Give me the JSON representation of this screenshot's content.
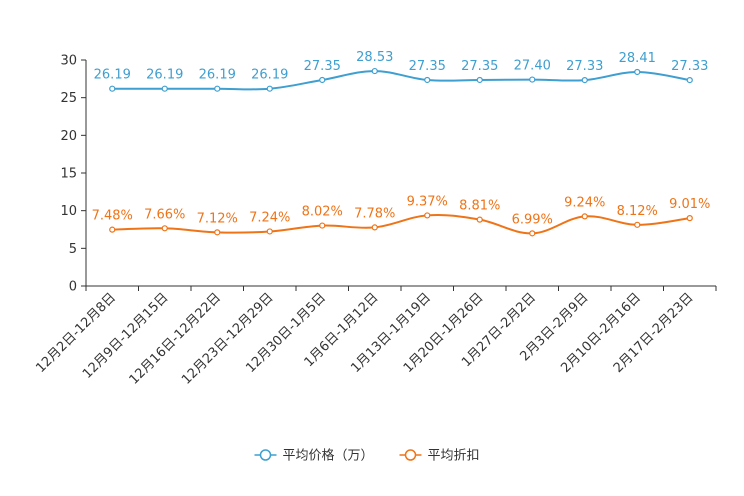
{
  "chart_data": {
    "type": "line",
    "categories": [
      "12月2日-12月8日",
      "12月9日-12月15日",
      "12月16日-12月22日",
      "12月23日-12月29日",
      "12月30日-1月5日",
      "1月6日-1月12日",
      "1月13日-1月19日",
      "1月20日-1月26日",
      "1月27日-2月2日",
      "2月3日-2月9日",
      "2月10日-2月16日",
      "2月17日-2月23日"
    ],
    "ylim": [
      0,
      30
    ],
    "yticks": [
      0,
      5,
      10,
      15,
      20,
      25,
      30
    ],
    "series": [
      {
        "name": "平均价格（万）",
        "color": "#3f9fd0",
        "values": [
          26.19,
          26.19,
          26.19,
          26.19,
          27.35,
          28.53,
          27.35,
          27.35,
          27.4,
          27.33,
          28.41,
          27.33
        ],
        "labels": [
          "26.19",
          "26.19",
          "26.19",
          "26.19",
          "27.35",
          "28.53",
          "27.35",
          "27.35",
          "27.40",
          "27.33",
          "28.41",
          "27.33"
        ]
      },
      {
        "name": "平均折扣",
        "color": "#ef7418",
        "values": [
          7.48,
          7.66,
          7.12,
          7.24,
          8.02,
          7.78,
          9.37,
          8.81,
          6.99,
          9.24,
          8.12,
          9.01
        ],
        "labels": [
          "7.48%",
          "7.66%",
          "7.12%",
          "7.24%",
          "8.02%",
          "7.78%",
          "9.37%",
          "8.81%",
          "6.99%",
          "9.24%",
          "8.12%",
          "9.01%"
        ]
      }
    ],
    "legend_position": "bottom-center"
  }
}
